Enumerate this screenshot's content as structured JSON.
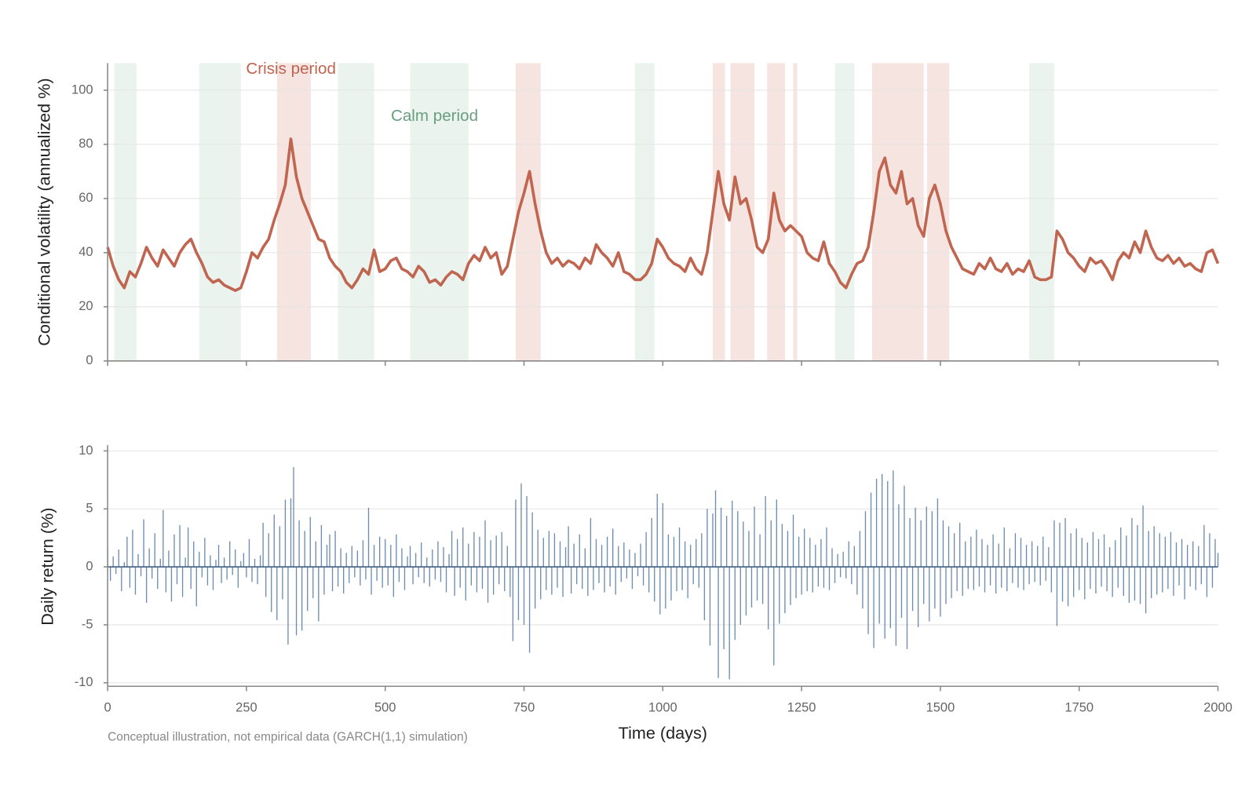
{
  "chart_data": [
    {
      "type": "line",
      "ylabel": "Conditional volatility (annualized %)",
      "xlim": [
        0,
        2000
      ],
      "ylim": [
        0,
        110
      ],
      "yticks": [
        0,
        20,
        40,
        60,
        80,
        100
      ],
      "grid": true,
      "color": "#c0654f",
      "spans": [
        {
          "name": "Crisis period",
          "color": "#f6e4e0",
          "text_color": "#c0654f",
          "ranges": [
            [
              305,
              366
            ],
            [
              735,
              780
            ],
            [
              1090,
              1112
            ],
            [
              1122,
              1165
            ],
            [
              1188,
              1220
            ],
            [
              1235,
              1242
            ],
            [
              1377,
              1470
            ],
            [
              1476,
              1516
            ]
          ]
        },
        {
          "name": "Calm period",
          "color": "#eaf3ee",
          "text_color": "#6a9e80",
          "ranges": [
            [
              12,
              52
            ],
            [
              165,
              240
            ],
            [
              415,
              480
            ],
            [
              545,
              650
            ],
            [
              950,
              985
            ],
            [
              1310,
              1345
            ],
            [
              1660,
              1705
            ]
          ]
        }
      ],
      "x": [
        0,
        10,
        20,
        30,
        40,
        50,
        60,
        70,
        80,
        90,
        100,
        110,
        120,
        130,
        140,
        150,
        160,
        170,
        180,
        190,
        200,
        210,
        220,
        230,
        240,
        250,
        260,
        270,
        280,
        290,
        300,
        310,
        320,
        330,
        340,
        350,
        360,
        370,
        380,
        390,
        400,
        410,
        420,
        430,
        440,
        450,
        460,
        470,
        480,
        490,
        500,
        510,
        520,
        530,
        540,
        550,
        560,
        570,
        580,
        590,
        600,
        610,
        620,
        630,
        640,
        650,
        660,
        670,
        680,
        690,
        700,
        710,
        720,
        730,
        740,
        750,
        760,
        770,
        780,
        790,
        800,
        810,
        820,
        830,
        840,
        850,
        860,
        870,
        880,
        890,
        900,
        910,
        920,
        930,
        940,
        950,
        960,
        970,
        980,
        990,
        1000,
        1010,
        1020,
        1030,
        1040,
        1050,
        1060,
        1070,
        1080,
        1090,
        1100,
        1110,
        1120,
        1130,
        1140,
        1150,
        1160,
        1170,
        1180,
        1190,
        1200,
        1210,
        1220,
        1230,
        1240,
        1250,
        1260,
        1270,
        1280,
        1290,
        1300,
        1310,
        1320,
        1330,
        1340,
        1350,
        1360,
        1370,
        1380,
        1390,
        1400,
        1410,
        1420,
        1430,
        1440,
        1450,
        1460,
        1470,
        1480,
        1490,
        1500,
        1510,
        1520,
        1530,
        1540,
        1550,
        1560,
        1570,
        1580,
        1590,
        1600,
        1610,
        1620,
        1630,
        1640,
        1650,
        1660,
        1670,
        1680,
        1690,
        1700,
        1710,
        1720,
        1730,
        1740,
        1750,
        1760,
        1770,
        1780,
        1790,
        1800,
        1810,
        1820,
        1830,
        1840,
        1850,
        1860,
        1870,
        1880,
        1890,
        1900,
        1910,
        1920,
        1930,
        1940,
        1950,
        1960,
        1970,
        1980,
        1990,
        2000
      ],
      "values": [
        42,
        35,
        30,
        27,
        33,
        31,
        36,
        42,
        38,
        35,
        41,
        38,
        35,
        40,
        43,
        45,
        40,
        36,
        31,
        29,
        30,
        28,
        27,
        26,
        27,
        33,
        40,
        38,
        42,
        45,
        52,
        58,
        65,
        82,
        68,
        60,
        55,
        50,
        45,
        44,
        38,
        35,
        33,
        29,
        27,
        30,
        34,
        32,
        41,
        33,
        34,
        37,
        38,
        34,
        33,
        31,
        35,
        33,
        29,
        30,
        28,
        31,
        33,
        32,
        30,
        36,
        39,
        37,
        42,
        38,
        40,
        32,
        35,
        45,
        55,
        62,
        70,
        58,
        48,
        40,
        36,
        38,
        35,
        37,
        36,
        34,
        38,
        36,
        43,
        40,
        38,
        35,
        40,
        33,
        32,
        30,
        30,
        32,
        36,
        45,
        42,
        38,
        36,
        35,
        33,
        38,
        34,
        32,
        40,
        55,
        70,
        58,
        52,
        68,
        58,
        60,
        52,
        42,
        40,
        45,
        62,
        52,
        48,
        50,
        48,
        46,
        40,
        38,
        37,
        44,
        36,
        33,
        29,
        27,
        32,
        36,
        37,
        42,
        55,
        70,
        75,
        65,
        62,
        70,
        58,
        60,
        50,
        46,
        60,
        65,
        58,
        48,
        42,
        38,
        34,
        33,
        32,
        36,
        34,
        38,
        34,
        33,
        36,
        32,
        34,
        33,
        37,
        31,
        30,
        30,
        31,
        48,
        45,
        40,
        38,
        35,
        33,
        38,
        36,
        37,
        34,
        30,
        37,
        40,
        38,
        44,
        40,
        48,
        42,
        38,
        37,
        39,
        36,
        38,
        35,
        36,
        34,
        33,
        40,
        41,
        36
      ]
    },
    {
      "type": "bar",
      "ylabel": "Daily return (%)",
      "xlabel": "Time (days)",
      "note": "Conceptual illustration, not empirical data (GARCH(1,1) simulation)",
      "xlim": [
        0,
        2000
      ],
      "xticks": [
        0,
        250,
        500,
        750,
        1000,
        1250,
        1500,
        1750,
        2000
      ],
      "ylim": [
        -10.3,
        10.5
      ],
      "yticks": [
        -10,
        -5,
        0,
        5,
        10
      ],
      "grid": true,
      "color": "#3d6694",
      "x": [
        0,
        5,
        10,
        15,
        20,
        25,
        30,
        35,
        40,
        45,
        50,
        55,
        60,
        65,
        70,
        75,
        80,
        85,
        90,
        95,
        100,
        105,
        110,
        115,
        120,
        125,
        130,
        135,
        140,
        145,
        150,
        155,
        160,
        165,
        170,
        175,
        180,
        185,
        190,
        195,
        200,
        205,
        210,
        215,
        220,
        225,
        230,
        235,
        240,
        245,
        250,
        255,
        260,
        265,
        270,
        275,
        280,
        285,
        290,
        295,
        300,
        305,
        310,
        315,
        320,
        325,
        330,
        335,
        340,
        345,
        350,
        355,
        360,
        365,
        370,
        375,
        380,
        385,
        390,
        395,
        400,
        405,
        410,
        415,
        420,
        425,
        430,
        435,
        440,
        445,
        450,
        455,
        460,
        465,
        470,
        475,
        480,
        485,
        490,
        495,
        500,
        505,
        510,
        515,
        520,
        525,
        530,
        535,
        540,
        545,
        550,
        555,
        560,
        565,
        570,
        575,
        580,
        585,
        590,
        595,
        600,
        605,
        610,
        615,
        620,
        625,
        630,
        635,
        640,
        645,
        650,
        655,
        660,
        665,
        670,
        675,
        680,
        685,
        690,
        695,
        700,
        705,
        710,
        715,
        720,
        725,
        730,
        735,
        740,
        745,
        750,
        755,
        760,
        765,
        770,
        775,
        780,
        785,
        790,
        795,
        800,
        805,
        810,
        815,
        820,
        825,
        830,
        835,
        840,
        845,
        850,
        855,
        860,
        865,
        870,
        875,
        880,
        885,
        890,
        895,
        900,
        905,
        910,
        915,
        920,
        925,
        930,
        935,
        940,
        945,
        950,
        955,
        960,
        965,
        970,
        975,
        980,
        985,
        990,
        995,
        1000,
        1005,
        1010,
        1015,
        1020,
        1025,
        1030,
        1035,
        1040,
        1045,
        1050,
        1055,
        1060,
        1065,
        1070,
        1075,
        1080,
        1085,
        1090,
        1095,
        1100,
        1105,
        1110,
        1115,
        1120,
        1125,
        1130,
        1135,
        1140,
        1145,
        1150,
        1155,
        1160,
        1165,
        1170,
        1175,
        1180,
        1185,
        1190,
        1195,
        1200,
        1205,
        1210,
        1215,
        1220,
        1225,
        1230,
        1235,
        1240,
        1245,
        1250,
        1255,
        1260,
        1265,
        1270,
        1275,
        1280,
        1285,
        1290,
        1295,
        1300,
        1305,
        1310,
        1315,
        1320,
        1325,
        1330,
        1335,
        1340,
        1345,
        1350,
        1355,
        1360,
        1365,
        1370,
        1375,
        1380,
        1385,
        1390,
        1395,
        1400,
        1405,
        1410,
        1415,
        1420,
        1425,
        1430,
        1435,
        1440,
        1445,
        1450,
        1455,
        1460,
        1465,
        1470,
        1475,
        1480,
        1485,
        1490,
        1495,
        1500,
        1505,
        1510,
        1515,
        1520,
        1525,
        1530,
        1535,
        1540,
        1545,
        1550,
        1555,
        1560,
        1565,
        1570,
        1575,
        1580,
        1585,
        1590,
        1595,
        1600,
        1605,
        1610,
        1615,
        1620,
        1625,
        1630,
        1635,
        1640,
        1645,
        1650,
        1655,
        1660,
        1665,
        1670,
        1675,
        1680,
        1685,
        1690,
        1695,
        1700,
        1705,
        1710,
        1715,
        1720,
        1725,
        1730,
        1735,
        1740,
        1745,
        1750,
        1755,
        1760,
        1765,
        1770,
        1775,
        1780,
        1785,
        1790,
        1795,
        1800,
        1805,
        1810,
        1815,
        1820,
        1825,
        1830,
        1835,
        1840,
        1845,
        1850,
        1855,
        1860,
        1865,
        1870,
        1875,
        1880,
        1885,
        1890,
        1895,
        1900,
        1905,
        1910,
        1915,
        1920,
        1925,
        1930,
        1935,
        1940,
        1945,
        1950,
        1955,
        1960,
        1965,
        1970,
        1975,
        1980,
        1985,
        1990,
        1995,
        2000
      ],
      "values": [
        1.8,
        -1.2,
        0.9,
        -0.6,
        1.5,
        -2.1,
        0.4,
        2.6,
        -1.8,
        3.2,
        -2.4,
        1.1,
        -0.8,
        4.1,
        -3.1,
        1.6,
        -1.0,
        2.9,
        -1.9,
        0.7,
        4.9,
        -2.2,
        1.4,
        -3.0,
        2.8,
        -1.5,
        3.6,
        -2.6,
        0.8,
        3.4,
        -1.9,
        2.2,
        -3.4,
        1.3,
        -0.9,
        2.5,
        -1.6,
        1.0,
        -2.0,
        0.6,
        1.9,
        -1.4,
        0.8,
        -1.1,
        2.2,
        -0.7,
        1.5,
        -1.8,
        0.5,
        1.2,
        -0.9,
        2.4,
        -1.3,
        0.7,
        -1.5,
        1.0,
        3.8,
        -2.6,
        2.9,
        -3.9,
        4.5,
        -4.6,
        3.5,
        -2.8,
        5.8,
        -6.7,
        5.9,
        8.6,
        -5.9,
        4.0,
        -5.5,
        3.1,
        -3.8,
        4.3,
        -2.7,
        2.2,
        -4.7,
        3.6,
        -2.4,
        1.9,
        2.8,
        -2.1,
        3.1,
        -1.7,
        1.6,
        -2.3,
        1.2,
        -1.4,
        1.8,
        -0.9,
        1.4,
        -1.6,
        2.3,
        -1.1,
        5.1,
        -2.4,
        1.9,
        -1.2,
        2.6,
        -1.8,
        2.4,
        -1.6,
        1.9,
        -2.6,
        2.8,
        -1.3,
        1.6,
        -2.0,
        0.9,
        1.8,
        -1.5,
        1.2,
        -0.9,
        2.1,
        -1.4,
        0.8,
        -1.7,
        1.5,
        -1.1,
        2.2,
        -1.3,
        1.7,
        -2.2,
        1.1,
        3.1,
        -2.5,
        2.4,
        -1.8,
        3.4,
        -2.9,
        2.0,
        -1.6,
        3.0,
        -2.2,
        2.6,
        -1.9,
        4.0,
        -3.1,
        2.3,
        -2.4,
        2.7,
        -1.5,
        3.0,
        -2.1,
        1.8,
        -2.6,
        -6.4,
        5.8,
        -4.6,
        7.2,
        -5.0,
        6.1,
        -7.4,
        4.7,
        -3.6,
        3.2,
        -2.8,
        2.5,
        -2.0,
        3.1,
        -2.4,
        2.9,
        -1.8,
        2.2,
        -2.6,
        1.7,
        3.5,
        -2.3,
        2.0,
        -1.5,
        2.8,
        -1.9,
        1.6,
        -2.5,
        4.2,
        -2.0,
        2.4,
        -1.4,
        1.9,
        -2.2,
        2.6,
        -1.7,
        3.3,
        -2.4,
        1.8,
        -1.3,
        2.1,
        -1.0,
        1.5,
        -1.9,
        1.2,
        -0.8,
        2.0,
        -1.6,
        3.0,
        -2.2,
        4.2,
        -3.0,
        6.3,
        -4.1,
        5.5,
        -3.6,
        2.8,
        -2.9,
        2.6,
        -2.1,
        3.4,
        -2.0,
        2.2,
        -2.7,
        1.9,
        -1.5,
        2.4,
        -1.8,
        2.9,
        -4.6,
        5.0,
        -6.8,
        4.6,
        6.6,
        -9.6,
        5.1,
        -7.1,
        4.4,
        -9.7,
        5.7,
        -6.3,
        4.8,
        -5.0,
        3.9,
        -4.2,
        3.1,
        -3.5,
        5.2,
        -2.9,
        2.8,
        -3.2,
        6.1,
        -5.4,
        4.0,
        -8.5,
        5.8,
        -4.9,
        3.7,
        -4.0,
        3.1,
        -3.3,
        4.5,
        -2.7,
        2.6,
        -2.4,
        3.3,
        -2.1,
        2.5,
        -2.2,
        1.9,
        -1.7,
        2.4,
        -1.8,
        3.4,
        -2.0,
        1.6,
        -1.4,
        1.1,
        -0.9,
        1.3,
        -1.0,
        2.2,
        -1.5,
        1.8,
        -2.4,
        3.1,
        -3.6,
        4.8,
        -5.8,
        6.4,
        -7.0,
        7.6,
        -4.9,
        8.0,
        -6.2,
        7.4,
        -5.3,
        8.3,
        -6.8,
        5.4,
        -4.4,
        7.0,
        -7.1,
        4.2,
        -3.8,
        5.1,
        -5.2,
        4.0,
        -3.2,
        5.2,
        -4.7,
        4.8,
        -3.6,
        5.9,
        -4.3,
        4.0,
        -3.2,
        3.5,
        -2.7,
        2.9,
        -2.1,
        3.8,
        -2.5,
        2.2,
        -1.9,
        2.6,
        -2.0,
        3.2,
        -1.7,
        2.4,
        -2.2,
        1.9,
        -1.6,
        2.8,
        -2.3,
        2.0,
        -1.8,
        3.4,
        -2.1,
        1.6,
        -1.4,
        2.9,
        -1.8,
        2.5,
        -2.0,
        1.9,
        -1.5,
        2.2,
        -1.3,
        1.8,
        -1.6,
        2.6,
        -1.2,
        1.7,
        -2.2,
        4.0,
        -5.1,
        3.8,
        -3.0,
        4.2,
        -3.4,
        2.9,
        -2.6,
        3.3,
        -2.0,
        2.5,
        -2.8,
        2.1,
        -1.9,
        3.0,
        -2.3,
        2.4,
        -1.7,
        2.8,
        -2.1,
        1.7,
        -2.6,
        2.3,
        -1.8,
        3.4,
        -2.5,
        2.7,
        -3.1,
        4.2,
        -2.9,
        3.6,
        -3.2,
        5.3,
        -4.0,
        3.1,
        -2.7,
        3.5,
        -2.4,
        2.9,
        -2.2,
        2.6,
        -1.9,
        3.0,
        -2.5,
        2.1,
        -1.6,
        2.4,
        -2.8,
        1.9,
        -1.7,
        2.2,
        -2.0,
        1.8,
        -1.5,
        3.6,
        -2.6,
        2.9,
        -1.8,
        2.4,
        1.2
      ]
    }
  ]
}
